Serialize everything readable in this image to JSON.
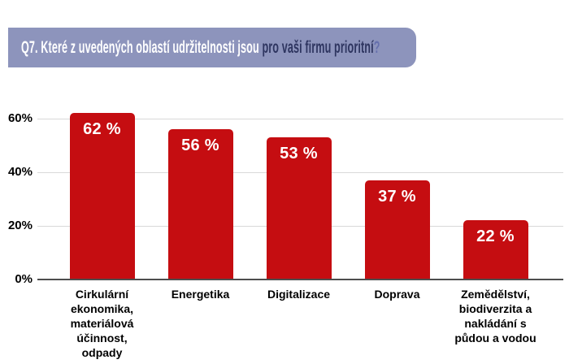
{
  "header": {
    "title_primary": "Q7. Které z uvedených oblastí udržitelnosti jsou ",
    "title_highlight": "pro vaši firmu prioritní",
    "title_qmark": "?"
  },
  "chart_data": {
    "type": "bar",
    "title": "Q7. Které z uvedených oblastí udržitelnosti jsou pro vaši firmu prioritní?",
    "categories": [
      "Cirkulární ekonomika, materiálová účinnost, odpady",
      "Energetika",
      "Digitalizace",
      "Doprava",
      "Zemědělství, biodiverzita a nakládání s půdou a vodou"
    ],
    "category_display_lines": [
      "Cirkulární\nekonomika,\nmateriálová\núčinnost,\nodpady",
      "Energetika",
      "Digitalizace",
      "Doprava",
      "Zemědělství,\nbiodiverzita a\nnakládání s\npůdou a vodou"
    ],
    "values": [
      62,
      56,
      53,
      37,
      22
    ],
    "value_labels": [
      "62 %",
      "56 %",
      "53 %",
      "37 %",
      "22 %"
    ],
    "unit": "%",
    "xlabel": "",
    "ylabel": "",
    "ylim": [
      0,
      66
    ],
    "yticks": [
      {
        "value": 0,
        "label": "0%"
      },
      {
        "value": 20,
        "label": "20%"
      },
      {
        "value": 40,
        "label": "40%"
      },
      {
        "value": 60,
        "label": "60%"
      }
    ],
    "grid": true,
    "legend": false
  },
  "colors": {
    "background": "#ffffff",
    "banner_bg": "#8d94bc",
    "banner_text_primary": "#ffffff",
    "banner_text_highlight": "#2e3560",
    "banner_qmark": "#6670ad",
    "bar": "#c50d11",
    "bar_value_text": "#ffffff",
    "gridline": "#d9d9d9",
    "axis_line": "#4d4d4d",
    "axis_text": "#000000"
  }
}
